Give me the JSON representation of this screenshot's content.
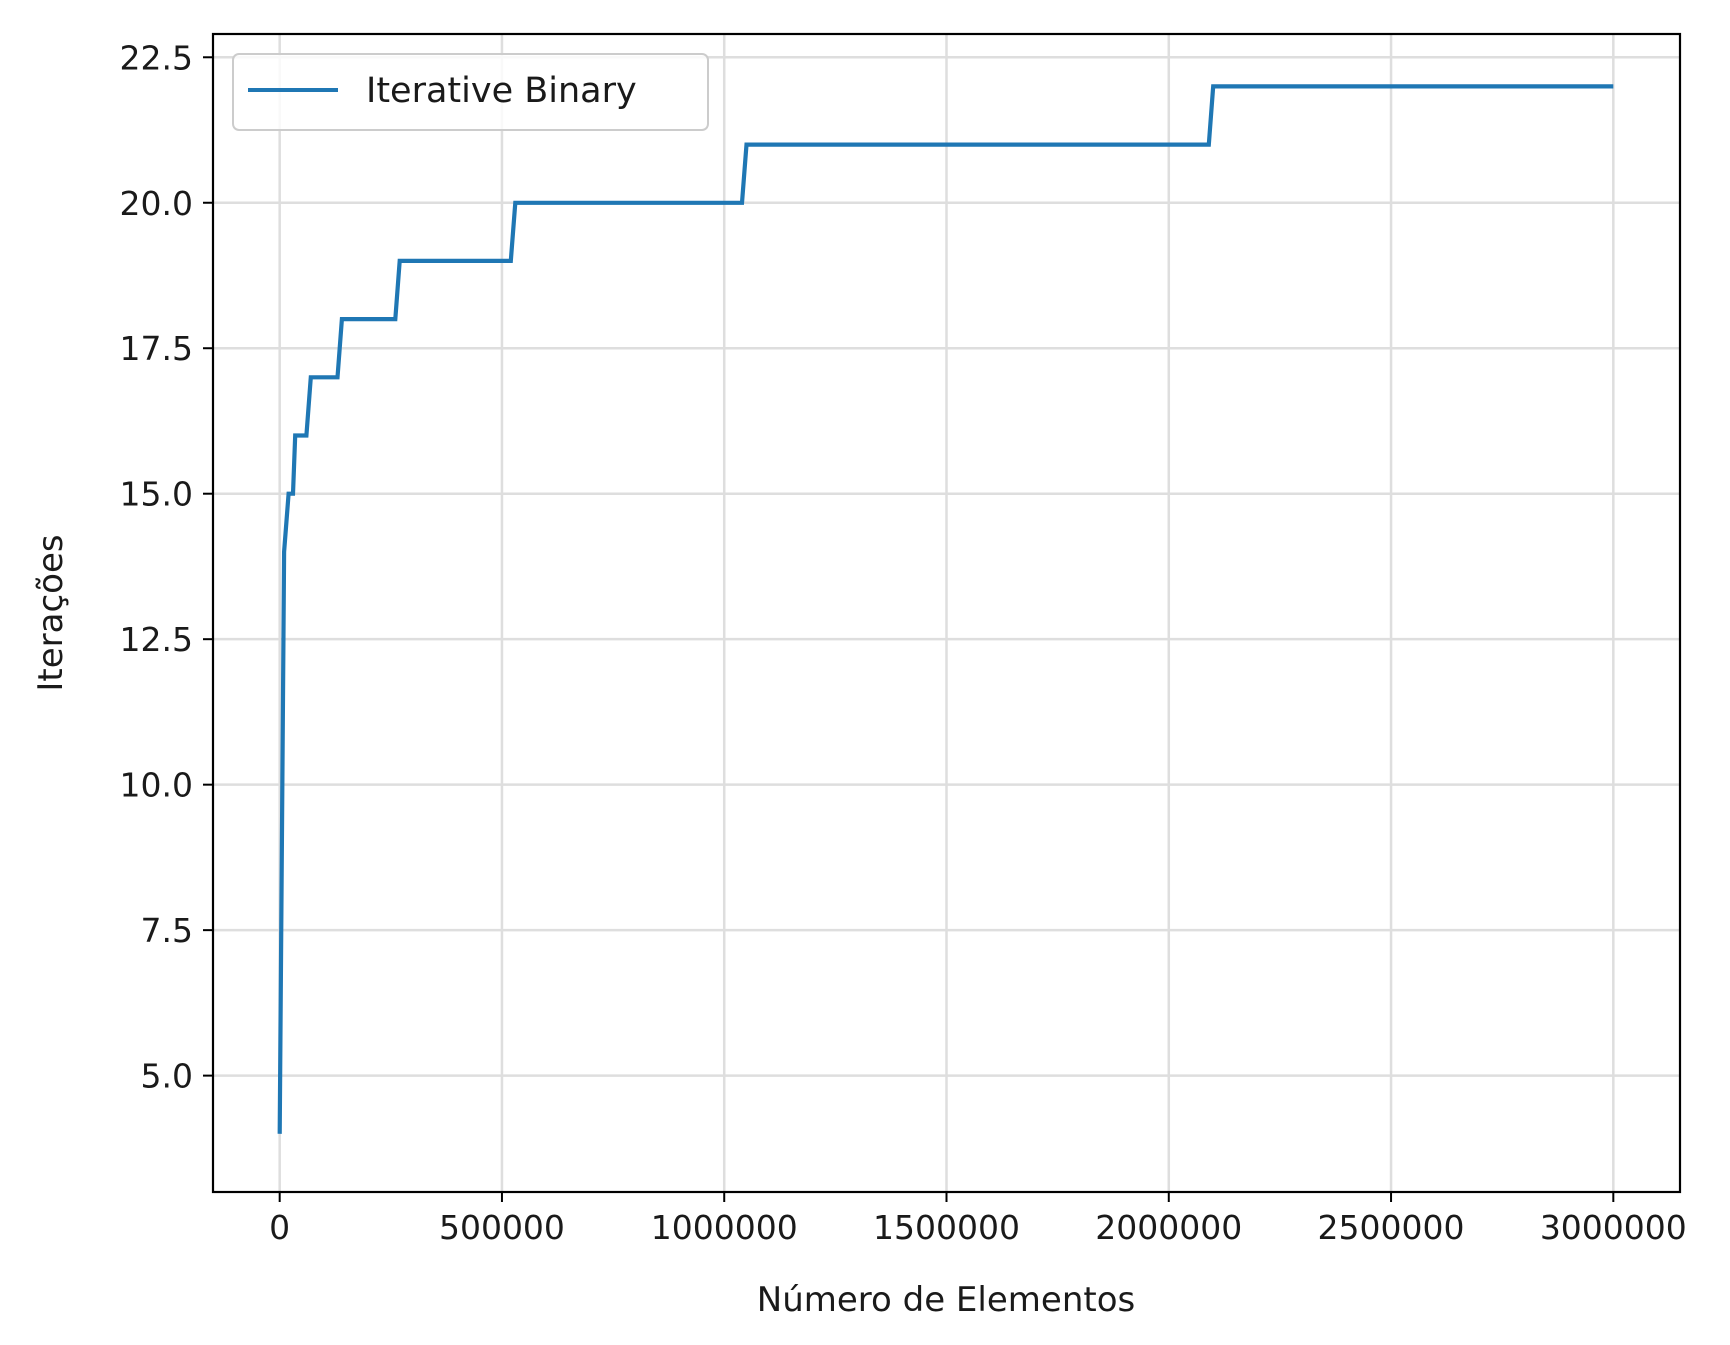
{
  "chart_data": {
    "type": "line",
    "title": "",
    "xlabel": "Número de Elementos",
    "ylabel": "Iterações",
    "xlim": [
      -150000,
      3150000
    ],
    "ylim": [
      3.0,
      22.9
    ],
    "grid": true,
    "legend_position": "top-left",
    "x_ticks": [
      0,
      500000,
      1000000,
      1500000,
      2000000,
      2500000,
      3000000
    ],
    "x_tick_labels": [
      "0",
      "500000",
      "1000000",
      "1500000",
      "2000000",
      "2500000",
      "3000000"
    ],
    "y_ticks": [
      5.0,
      7.5,
      10.0,
      12.5,
      15.0,
      17.5,
      20.0,
      22.5
    ],
    "y_tick_labels": [
      "5.0",
      "7.5",
      "10.0",
      "12.5",
      "15.0",
      "17.5",
      "20.0",
      "22.5"
    ],
    "series": [
      {
        "name": "Iterative Binary",
        "color": "#1f77b4",
        "x": [
          0,
          10000,
          20000,
          30000,
          35000,
          60000,
          70000,
          130000,
          140000,
          260000,
          270000,
          520000,
          530000,
          1040000,
          1050000,
          2090000,
          2100000,
          3000000
        ],
        "y": [
          4,
          14,
          15,
          15,
          16,
          16,
          17,
          17,
          18,
          18,
          19,
          19,
          20,
          20,
          21,
          21,
          22,
          22
        ]
      }
    ]
  }
}
